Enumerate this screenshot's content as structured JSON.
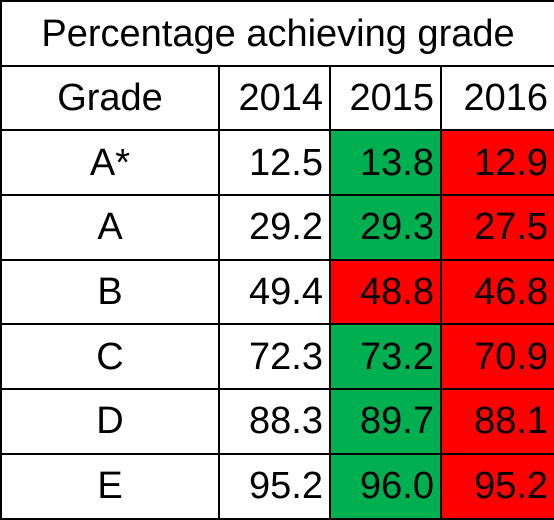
{
  "table": {
    "title": "Percentage achieving grade",
    "headers": [
      "Grade",
      "2014",
      "2015",
      "2016"
    ],
    "rows": [
      {
        "grade": "A*",
        "values": [
          "12.5",
          "13.8",
          "12.9"
        ],
        "change": [
          "neutral",
          "up",
          "down"
        ]
      },
      {
        "grade": "A",
        "values": [
          "29.2",
          "29.3",
          "27.5"
        ],
        "change": [
          "neutral",
          "up",
          "down"
        ]
      },
      {
        "grade": "B",
        "values": [
          "49.4",
          "48.8",
          "46.8"
        ],
        "change": [
          "neutral",
          "down",
          "down"
        ]
      },
      {
        "grade": "C",
        "values": [
          "72.3",
          "73.2",
          "70.9"
        ],
        "change": [
          "neutral",
          "up",
          "down"
        ]
      },
      {
        "grade": "D",
        "values": [
          "88.3",
          "89.7",
          "88.1"
        ],
        "change": [
          "neutral",
          "up",
          "down"
        ]
      },
      {
        "grade": "E",
        "values": [
          "95.2",
          "96.0",
          "95.2"
        ],
        "change": [
          "neutral",
          "up",
          "down"
        ]
      }
    ]
  },
  "colors": {
    "increase": "#00b050",
    "decrease": "#ff0000",
    "neutral": "#ffffff"
  }
}
